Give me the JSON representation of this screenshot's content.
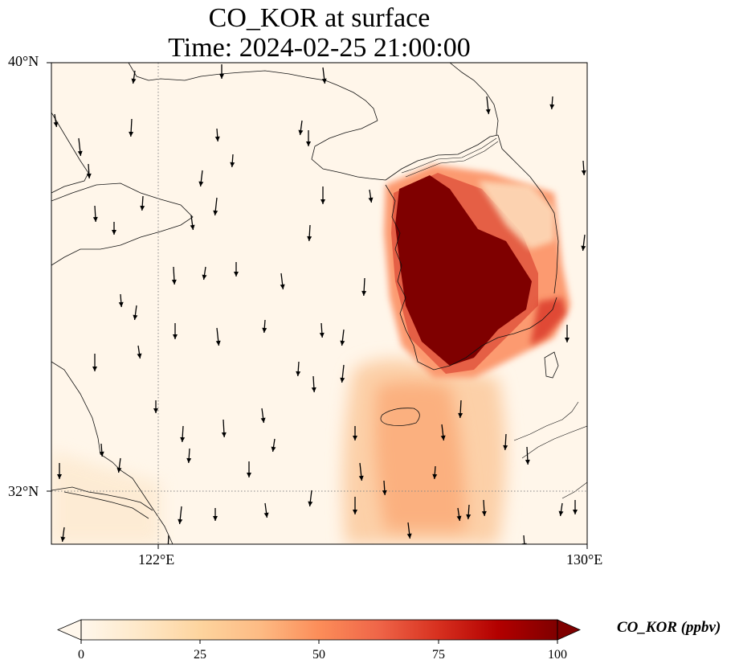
{
  "title": {
    "line1": "CO_KOR at surface",
    "line2": "Time: 2024-02-25 21:00:00"
  },
  "axes": {
    "lat_labels": [
      "40°N",
      "32°N"
    ],
    "lon_labels": [
      "122°E",
      "130°E"
    ]
  },
  "colorbar": {
    "label": "CO_KOR (ppbv)",
    "ticks": [
      "0",
      "25",
      "50",
      "75",
      "100"
    ],
    "min": 0,
    "max": 100,
    "extend": "both",
    "colormap": "OrRd",
    "colors": [
      "#fff7ec",
      "#fee8c8",
      "#fdd49e",
      "#fdbb84",
      "#fc8d59",
      "#ef6548",
      "#d7301f",
      "#b30000",
      "#7f0000"
    ]
  },
  "map": {
    "extent": {
      "lon_min": 120,
      "lon_max": 130,
      "lat_min": 31,
      "lat_max": 40
    },
    "gridlines": {
      "lon": [
        122,
        130
      ],
      "lat": [
        32,
        40
      ],
      "style": "dotted"
    },
    "wind_arrows": "mostly southward",
    "plume": "high CO concentrations over the Korean Peninsula extending south over the sea"
  }
}
